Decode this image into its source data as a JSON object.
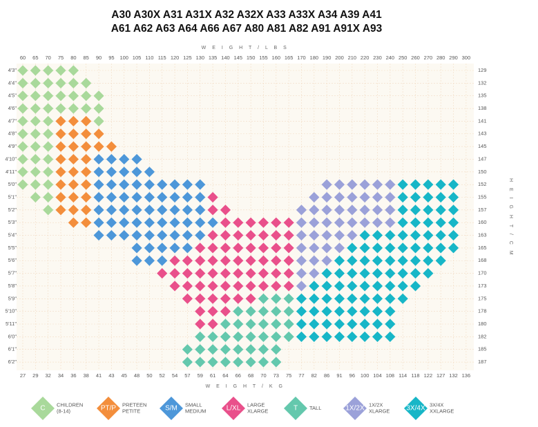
{
  "title_lines": [
    "A30 A30X A31 A31X A32 A32X A33 A33X A34 A39 A41",
    "A61 A62 A63 A64 A66 A67 A80 A81 A82 A91 A91X A93"
  ],
  "top_axis_title": "W E I G H T / L B S",
  "bottom_axis_title": "W E I G H T / K G",
  "right_axis_title": "H E I G H T / C M",
  "weight_lbs": [
    60,
    65,
    70,
    75,
    80,
    85,
    90,
    95,
    100,
    105,
    110,
    115,
    120,
    125,
    130,
    135,
    140,
    145,
    150,
    155,
    160,
    165,
    170,
    180,
    190,
    200,
    210,
    220,
    230,
    240,
    250,
    260,
    270,
    280,
    290,
    300
  ],
  "weight_kg": [
    27,
    29,
    32,
    34,
    36,
    38,
    41,
    43,
    45,
    48,
    50,
    52,
    54,
    57,
    59,
    61,
    64,
    66,
    68,
    70,
    73,
    75,
    77,
    82,
    86,
    91,
    96,
    100,
    104,
    108,
    114,
    118,
    122,
    127,
    132,
    136
  ],
  "legend": [
    {
      "code": "C",
      "lines": [
        "CHILDREN",
        "(8-14)"
      ],
      "color": "#a9d99b"
    },
    {
      "code": "PT/P",
      "lines": [
        "PRETEEN",
        "PETITE"
      ],
      "color": "#f38e3c"
    },
    {
      "code": "S/M",
      "lines": [
        "SMALL",
        "MEDIUM"
      ],
      "color": "#4d97d9"
    },
    {
      "code": "L/XL",
      "lines": [
        "LARGE",
        "XLARGE"
      ],
      "color": "#e9508b"
    },
    {
      "code": "T",
      "lines": [
        "TALL"
      ],
      "color": "#64c8ad"
    },
    {
      "code": "1X/2X",
      "lines": [
        "1X/2X",
        "XLARGE"
      ],
      "color": "#9ba1d9"
    },
    {
      "code": "3X/4X",
      "lines": [
        "3X/4X",
        "XXLARGE"
      ],
      "color": "#17b6c7"
    }
  ],
  "rows": [
    {
      "height": "4'3\"",
      "cm": 129,
      "cells": [
        "C",
        "C",
        "C",
        "C",
        "C",
        null,
        null,
        null,
        null,
        null,
        null,
        null,
        null,
        null,
        null,
        null,
        null,
        null,
        null,
        null,
        null,
        null,
        null,
        null,
        null,
        null,
        null,
        null,
        null,
        null,
        null,
        null,
        null,
        null,
        null,
        null
      ]
    },
    {
      "height": "4'4\"",
      "cm": 132,
      "cells": [
        "C",
        "C",
        "C",
        "C",
        "C",
        "C",
        null,
        null,
        null,
        null,
        null,
        null,
        null,
        null,
        null,
        null,
        null,
        null,
        null,
        null,
        null,
        null,
        null,
        null,
        null,
        null,
        null,
        null,
        null,
        null,
        null,
        null,
        null,
        null,
        null,
        null
      ]
    },
    {
      "height": "4'5\"",
      "cm": 135,
      "cells": [
        "C",
        "C",
        "C",
        "C",
        "C",
        "C",
        "C",
        null,
        null,
        null,
        null,
        null,
        null,
        null,
        null,
        null,
        null,
        null,
        null,
        null,
        null,
        null,
        null,
        null,
        null,
        null,
        null,
        null,
        null,
        null,
        null,
        null,
        null,
        null,
        null,
        null
      ]
    },
    {
      "height": "4'6\"",
      "cm": 138,
      "cells": [
        "C",
        "C",
        "C",
        "C",
        "C",
        "C",
        "C",
        null,
        null,
        null,
        null,
        null,
        null,
        null,
        null,
        null,
        null,
        null,
        null,
        null,
        null,
        null,
        null,
        null,
        null,
        null,
        null,
        null,
        null,
        null,
        null,
        null,
        null,
        null,
        null,
        null
      ]
    },
    {
      "height": "4'7\"",
      "cm": 141,
      "cells": [
        "C",
        "C",
        "C",
        "PT/P",
        "PT/P",
        "PT/P",
        "C",
        null,
        null,
        null,
        null,
        null,
        null,
        null,
        null,
        null,
        null,
        null,
        null,
        null,
        null,
        null,
        null,
        null,
        null,
        null,
        null,
        null,
        null,
        null,
        null,
        null,
        null,
        null,
        null,
        null
      ]
    },
    {
      "height": "4'8\"",
      "cm": 143,
      "cells": [
        "C",
        "C",
        "C",
        "PT/P",
        "PT/P",
        "PT/P",
        "PT/P",
        null,
        null,
        null,
        null,
        null,
        null,
        null,
        null,
        null,
        null,
        null,
        null,
        null,
        null,
        null,
        null,
        null,
        null,
        null,
        null,
        null,
        null,
        null,
        null,
        null,
        null,
        null,
        null,
        null
      ]
    },
    {
      "height": "4'9\"",
      "cm": 145,
      "cells": [
        "C",
        "C",
        "C",
        "PT/P",
        "PT/P",
        "PT/P",
        "PT/P",
        "PT/P",
        null,
        null,
        null,
        null,
        null,
        null,
        null,
        null,
        null,
        null,
        null,
        null,
        null,
        null,
        null,
        null,
        null,
        null,
        null,
        null,
        null,
        null,
        null,
        null,
        null,
        null,
        null,
        null
      ]
    },
    {
      "height": "4'10\"",
      "cm": 147,
      "cells": [
        "C",
        "C",
        "C",
        "PT/P",
        "PT/P",
        "PT/P",
        "S/M",
        "S/M",
        "S/M",
        "S/M",
        null,
        null,
        null,
        null,
        null,
        null,
        null,
        null,
        null,
        null,
        null,
        null,
        null,
        null,
        null,
        null,
        null,
        null,
        null,
        null,
        null,
        null,
        null,
        null,
        null,
        null
      ]
    },
    {
      "height": "4'11\"",
      "cm": 150,
      "cells": [
        "C",
        "C",
        "C",
        "PT/P",
        "PT/P",
        "PT/P",
        "S/M",
        "S/M",
        "S/M",
        "S/M",
        "S/M",
        null,
        null,
        null,
        null,
        null,
        null,
        null,
        null,
        null,
        null,
        null,
        null,
        null,
        null,
        null,
        null,
        null,
        null,
        null,
        null,
        null,
        null,
        null,
        null,
        null
      ]
    },
    {
      "height": "5'0\"",
      "cm": 152,
      "cells": [
        "C",
        "C",
        "C",
        "PT/P",
        "PT/P",
        "PT/P",
        "S/M",
        "S/M",
        "S/M",
        "S/M",
        "S/M",
        "S/M",
        "S/M",
        "S/M",
        "S/M",
        null,
        null,
        null,
        null,
        null,
        null,
        null,
        null,
        null,
        "1X/2X",
        "1X/2X",
        "1X/2X",
        "1X/2X",
        "1X/2X",
        "1X/2X",
        "3X/4X",
        "3X/4X",
        "3X/4X",
        "3X/4X",
        "3X/4X",
        null
      ]
    },
    {
      "height": "5'1\"",
      "cm": 155,
      "cells": [
        null,
        "C",
        "C",
        "PT/P",
        "PT/P",
        "PT/P",
        "S/M",
        "S/M",
        "S/M",
        "S/M",
        "S/M",
        "S/M",
        "S/M",
        "S/M",
        "S/M",
        "L/XL",
        null,
        null,
        null,
        null,
        null,
        null,
        null,
        "1X/2X",
        "1X/2X",
        "1X/2X",
        "1X/2X",
        "1X/2X",
        "1X/2X",
        "1X/2X",
        "3X/4X",
        "3X/4X",
        "3X/4X",
        "3X/4X",
        "3X/4X",
        null
      ]
    },
    {
      "height": "5'2\"",
      "cm": 157,
      "cells": [
        null,
        null,
        "C",
        "PT/P",
        "PT/P",
        "PT/P",
        "S/M",
        "S/M",
        "S/M",
        "S/M",
        "S/M",
        "S/M",
        "S/M",
        "S/M",
        "S/M",
        "L/XL",
        "L/XL",
        null,
        null,
        null,
        null,
        null,
        "1X/2X",
        "1X/2X",
        "1X/2X",
        "1X/2X",
        "1X/2X",
        "1X/2X",
        "1X/2X",
        "1X/2X",
        "3X/4X",
        "3X/4X",
        "3X/4X",
        "3X/4X",
        "3X/4X",
        null
      ]
    },
    {
      "height": "5'3\"",
      "cm": 160,
      "cells": [
        null,
        null,
        null,
        null,
        "PT/P",
        "PT/P",
        "S/M",
        "S/M",
        "S/M",
        "S/M",
        "S/M",
        "S/M",
        "S/M",
        "S/M",
        "S/M",
        "S/M",
        "L/XL",
        "L/XL",
        "L/XL",
        "L/XL",
        "L/XL",
        "L/XL",
        "1X/2X",
        "1X/2X",
        "1X/2X",
        "1X/2X",
        "1X/2X",
        "1X/2X",
        "1X/2X",
        "1X/2X",
        "3X/4X",
        "3X/4X",
        "3X/4X",
        "3X/4X",
        "3X/4X",
        null
      ]
    },
    {
      "height": "5'4\"",
      "cm": 163,
      "cells": [
        null,
        null,
        null,
        null,
        null,
        null,
        "S/M",
        "S/M",
        "S/M",
        "S/M",
        "S/M",
        "S/M",
        "S/M",
        "S/M",
        "S/M",
        "L/XL",
        "L/XL",
        "L/XL",
        "L/XL",
        "L/XL",
        "L/XL",
        "L/XL",
        "1X/2X",
        "1X/2X",
        "1X/2X",
        "1X/2X",
        "1X/2X",
        "3X/4X",
        "3X/4X",
        "3X/4X",
        "3X/4X",
        "3X/4X",
        "3X/4X",
        "3X/4X",
        "3X/4X",
        null
      ]
    },
    {
      "height": "5'5\"",
      "cm": 165,
      "cells": [
        null,
        null,
        null,
        null,
        null,
        null,
        null,
        null,
        null,
        "S/M",
        "S/M",
        "S/M",
        "S/M",
        "S/M",
        "L/XL",
        "L/XL",
        "L/XL",
        "L/XL",
        "L/XL",
        "L/XL",
        "L/XL",
        "L/XL",
        "1X/2X",
        "1X/2X",
        "1X/2X",
        "1X/2X",
        "3X/4X",
        "3X/4X",
        "3X/4X",
        "3X/4X",
        "3X/4X",
        "3X/4X",
        "3X/4X",
        "3X/4X",
        "3X/4X",
        null
      ]
    },
    {
      "height": "5'6\"",
      "cm": 168,
      "cells": [
        null,
        null,
        null,
        null,
        null,
        null,
        null,
        null,
        null,
        "S/M",
        "S/M",
        "S/M",
        "L/XL",
        "L/XL",
        "L/XL",
        "L/XL",
        "L/XL",
        "L/XL",
        "L/XL",
        "L/XL",
        "L/XL",
        "L/XL",
        "1X/2X",
        "1X/2X",
        "1X/2X",
        "3X/4X",
        "3X/4X",
        "3X/4X",
        "3X/4X",
        "3X/4X",
        "3X/4X",
        "3X/4X",
        "3X/4X",
        "3X/4X",
        null,
        null
      ]
    },
    {
      "height": "5'7\"",
      "cm": 170,
      "cells": [
        null,
        null,
        null,
        null,
        null,
        null,
        null,
        null,
        null,
        null,
        null,
        "L/XL",
        "L/XL",
        "L/XL",
        "L/XL",
        "L/XL",
        "L/XL",
        "L/XL",
        "L/XL",
        "L/XL",
        "L/XL",
        "L/XL",
        "1X/2X",
        "1X/2X",
        "3X/4X",
        "3X/4X",
        "3X/4X",
        "3X/4X",
        "3X/4X",
        "3X/4X",
        "3X/4X",
        "3X/4X",
        "3X/4X",
        null,
        null,
        null
      ]
    },
    {
      "height": "5'8\"",
      "cm": 173,
      "cells": [
        null,
        null,
        null,
        null,
        null,
        null,
        null,
        null,
        null,
        null,
        null,
        null,
        "L/XL",
        "L/XL",
        "L/XL",
        "L/XL",
        "L/XL",
        "L/XL",
        "L/XL",
        "L/XL",
        "L/XL",
        "L/XL",
        "1X/2X",
        "3X/4X",
        "3X/4X",
        "3X/4X",
        "3X/4X",
        "3X/4X",
        "3X/4X",
        "3X/4X",
        "3X/4X",
        "3X/4X",
        null,
        null,
        null,
        null
      ]
    },
    {
      "height": "5'9\"",
      "cm": 175,
      "cells": [
        null,
        null,
        null,
        null,
        null,
        null,
        null,
        null,
        null,
        null,
        null,
        null,
        null,
        "L/XL",
        "L/XL",
        "L/XL",
        "L/XL",
        "L/XL",
        "L/XL",
        "T",
        "T",
        "T",
        "3X/4X",
        "3X/4X",
        "3X/4X",
        "3X/4X",
        "3X/4X",
        "3X/4X",
        "3X/4X",
        "3X/4X",
        "3X/4X",
        null,
        null,
        null,
        null,
        null
      ]
    },
    {
      "height": "5'10\"",
      "cm": 178,
      "cells": [
        null,
        null,
        null,
        null,
        null,
        null,
        null,
        null,
        null,
        null,
        null,
        null,
        null,
        null,
        "L/XL",
        "L/XL",
        "L/XL",
        "T",
        "T",
        "T",
        "T",
        "T",
        "3X/4X",
        "3X/4X",
        "3X/4X",
        "3X/4X",
        "3X/4X",
        "3X/4X",
        "3X/4X",
        "3X/4X",
        null,
        null,
        null,
        null,
        null,
        null
      ]
    },
    {
      "height": "5'11\"",
      "cm": 180,
      "cells": [
        null,
        null,
        null,
        null,
        null,
        null,
        null,
        null,
        null,
        null,
        null,
        null,
        null,
        null,
        "L/XL",
        "L/XL",
        "T",
        "T",
        "T",
        "T",
        "T",
        "T",
        "3X/4X",
        "3X/4X",
        "3X/4X",
        "3X/4X",
        "3X/4X",
        "3X/4X",
        "3X/4X",
        "3X/4X",
        null,
        null,
        null,
        null,
        null,
        null
      ]
    },
    {
      "height": "6'0\"",
      "cm": 182,
      "cells": [
        null,
        null,
        null,
        null,
        null,
        null,
        null,
        null,
        null,
        null,
        null,
        null,
        null,
        null,
        "T",
        "T",
        "T",
        "T",
        "T",
        "T",
        "T",
        "T",
        "3X/4X",
        "3X/4X",
        "3X/4X",
        "3X/4X",
        "3X/4X",
        "3X/4X",
        "3X/4X",
        "3X/4X",
        null,
        null,
        null,
        null,
        null,
        null
      ]
    },
    {
      "height": "6'1\"",
      "cm": 185,
      "cells": [
        null,
        null,
        null,
        null,
        null,
        null,
        null,
        null,
        null,
        null,
        null,
        null,
        null,
        "T",
        "T",
        "T",
        "T",
        "T",
        "T",
        "T",
        "T",
        null,
        null,
        null,
        null,
        null,
        null,
        null,
        null,
        null,
        null,
        null,
        null,
        null,
        null,
        null
      ]
    },
    {
      "height": "6'2\"",
      "cm": 187,
      "cells": [
        null,
        null,
        null,
        null,
        null,
        null,
        null,
        null,
        null,
        null,
        null,
        null,
        null,
        "T",
        "T",
        "T",
        "T",
        "T",
        "T",
        "T",
        "T",
        null,
        null,
        null,
        null,
        null,
        null,
        null,
        null,
        null,
        null,
        null,
        null,
        null,
        null,
        null
      ]
    }
  ]
}
